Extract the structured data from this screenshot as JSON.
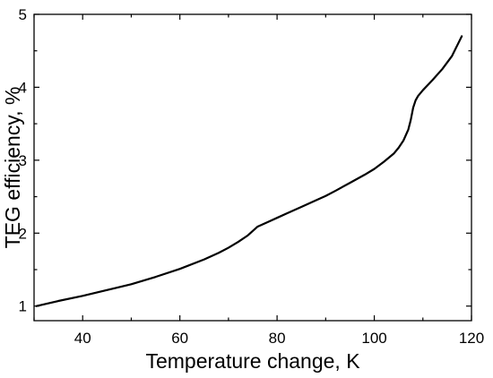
{
  "chart_data": {
    "type": "line",
    "title": "",
    "xlabel": "Temperature change, K",
    "ylabel": "TEG efficiency, %",
    "xlim": [
      30,
      120
    ],
    "ylim": [
      0.8,
      5
    ],
    "xticks": [
      40,
      60,
      80,
      100,
      120
    ],
    "yticks": [
      1,
      2,
      3,
      4,
      5
    ],
    "grid": false,
    "legend": "none",
    "line_color": "#000000",
    "series": [
      {
        "x": [
          30.5,
          35,
          40,
          45,
          50,
          55,
          60,
          65,
          68,
          70,
          72,
          74,
          75,
          76,
          78,
          80,
          82,
          85,
          88,
          90,
          92,
          95,
          98,
          100,
          102,
          104,
          105,
          106,
          107,
          107.5,
          108,
          108.5,
          109,
          110,
          112,
          114,
          116,
          118
        ],
        "y": [
          1.0,
          1.07,
          1.14,
          1.22,
          1.3,
          1.4,
          1.51,
          1.64,
          1.73,
          1.8,
          1.88,
          1.97,
          2.03,
          2.09,
          2.15,
          2.21,
          2.27,
          2.36,
          2.45,
          2.51,
          2.58,
          2.69,
          2.8,
          2.88,
          2.98,
          3.09,
          3.17,
          3.27,
          3.42,
          3.55,
          3.72,
          3.82,
          3.88,
          3.96,
          4.1,
          4.25,
          4.43,
          4.7
        ]
      }
    ]
  }
}
